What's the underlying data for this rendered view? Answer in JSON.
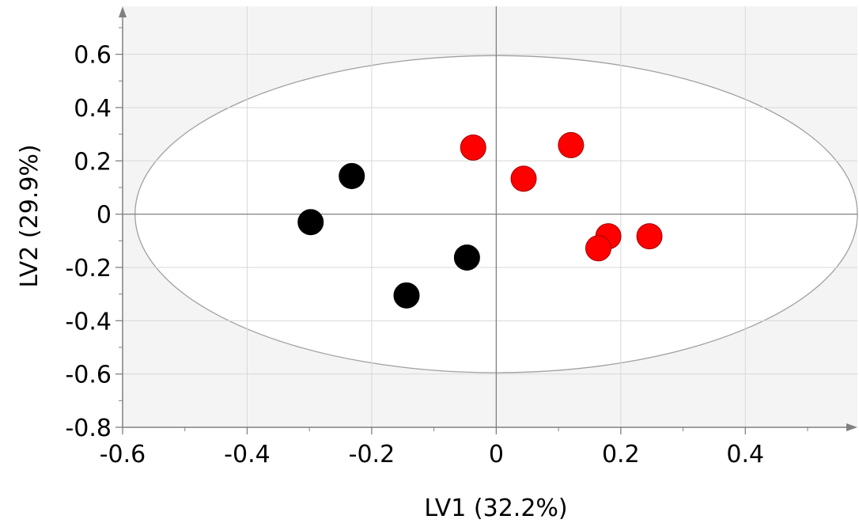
{
  "chart_data": {
    "type": "scatter",
    "title": "",
    "xlabel": "LV1 (32.2%)",
    "ylabel": "LV2 (29.9%)",
    "xlim": [
      -0.6,
      0.58
    ],
    "ylim": [
      -0.8,
      0.78
    ],
    "x_ticks": [
      -0.6,
      -0.4,
      -0.2,
      0,
      0.2,
      0.4
    ],
    "x_tick_labels": [
      "-0.6",
      "-0.4",
      "-0.2",
      "0",
      "0.2",
      "0.4"
    ],
    "y_ticks": [
      -0.8,
      -0.6,
      -0.4,
      -0.2,
      0,
      0.2,
      0.4,
      0.6
    ],
    "y_tick_labels": [
      "-0.8",
      "-0.6",
      "-0.4",
      "-0.2",
      "0",
      "0.2",
      "0.4",
      "0.6"
    ],
    "grid": true,
    "legend": "none",
    "background_color": "#f4f4f4",
    "ellipse": {
      "cx": 0.0,
      "cy": 0.0,
      "rx": 0.58,
      "ry": 0.595,
      "fill": "#ffffff",
      "stroke": "#a0a0a0"
    },
    "series": [
      {
        "color": "#000000",
        "x": [
          -0.232,
          -0.298,
          -0.047,
          -0.144
        ],
        "y": [
          0.143,
          -0.03,
          -0.163,
          -0.305
        ]
      },
      {
        "color": "#ff0000",
        "x": [
          -0.037,
          0.044,
          0.12,
          0.18,
          0.164,
          0.246
        ],
        "y": [
          0.25,
          0.133,
          0.259,
          -0.083,
          -0.128,
          -0.083
        ]
      }
    ]
  }
}
